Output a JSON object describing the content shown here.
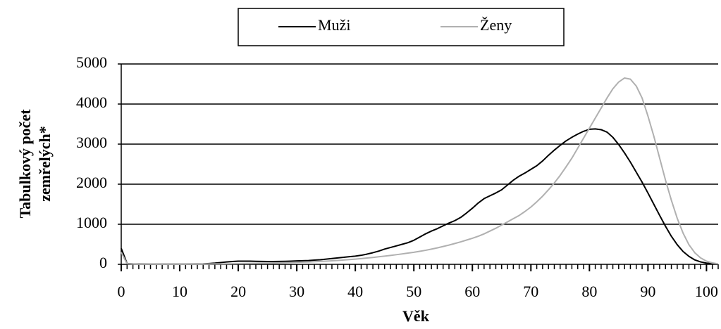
{
  "chart_data": {
    "type": "line",
    "xlabel": "Věk",
    "ylabel": [
      "Tabulkový počet",
      "zemřelých*"
    ],
    "x": [
      0,
      1,
      2,
      3,
      4,
      5,
      6,
      7,
      8,
      9,
      10,
      11,
      12,
      13,
      14,
      15,
      16,
      17,
      18,
      19,
      20,
      21,
      22,
      23,
      24,
      25,
      26,
      27,
      28,
      29,
      30,
      31,
      32,
      33,
      34,
      35,
      36,
      37,
      38,
      39,
      40,
      41,
      42,
      43,
      44,
      45,
      46,
      47,
      48,
      49,
      50,
      51,
      52,
      53,
      54,
      55,
      56,
      57,
      58,
      59,
      60,
      61,
      62,
      63,
      64,
      65,
      66,
      67,
      68,
      69,
      70,
      71,
      72,
      73,
      74,
      75,
      76,
      77,
      78,
      79,
      80,
      81,
      82,
      83,
      84,
      85,
      86,
      87,
      88,
      89,
      90,
      91,
      92,
      93,
      94,
      95,
      96,
      97,
      98,
      99,
      100,
      101,
      102
    ],
    "series": [
      {
        "name": "Muži",
        "color": "#000000",
        "values": [
          400,
          20,
          10,
          8,
          6,
          5,
          5,
          5,
          5,
          5,
          5,
          5,
          6,
          8,
          12,
          20,
          30,
          45,
          60,
          70,
          80,
          80,
          78,
          75,
          72,
          70,
          70,
          72,
          75,
          80,
          85,
          90,
          95,
          105,
          115,
          130,
          145,
          160,
          175,
          190,
          205,
          225,
          255,
          290,
          330,
          380,
          420,
          460,
          500,
          540,
          600,
          680,
          760,
          830,
          890,
          960,
          1030,
          1090,
          1170,
          1280,
          1400,
          1530,
          1640,
          1710,
          1780,
          1860,
          1980,
          2100,
          2200,
          2280,
          2370,
          2460,
          2580,
          2720,
          2850,
          2970,
          3080,
          3170,
          3250,
          3320,
          3370,
          3380,
          3360,
          3300,
          3170,
          2990,
          2780,
          2550,
          2300,
          2050,
          1780,
          1500,
          1220,
          950,
          700,
          490,
          320,
          200,
          110,
          60,
          30,
          15,
          5
        ]
      },
      {
        "name": "Ženy",
        "color": "#b0b0b0",
        "values": [
          300,
          15,
          8,
          5,
          4,
          4,
          3,
          3,
          3,
          3,
          3,
          3,
          4,
          5,
          6,
          8,
          10,
          12,
          14,
          16,
          18,
          20,
          22,
          25,
          28,
          30,
          34,
          38,
          42,
          46,
          50,
          55,
          60,
          66,
          72,
          80,
          88,
          97,
          107,
          118,
          130,
          143,
          157,
          172,
          188,
          205,
          222,
          240,
          260,
          280,
          300,
          325,
          350,
          380,
          410,
          445,
          480,
          520,
          560,
          605,
          650,
          700,
          760,
          830,
          900,
          980,
          1060,
          1140,
          1220,
          1320,
          1430,
          1560,
          1700,
          1860,
          2030,
          2220,
          2430,
          2650,
          2900,
          3150,
          3400,
          3650,
          3900,
          4150,
          4380,
          4550,
          4650,
          4620,
          4450,
          4150,
          3700,
          3200,
          2650,
          2100,
          1600,
          1150,
          780,
          490,
          290,
          160,
          80,
          35,
          12
        ]
      }
    ],
    "xlim": [
      0,
      102
    ],
    "xticks": [
      0,
      10,
      20,
      30,
      40,
      50,
      60,
      70,
      80,
      90,
      100
    ],
    "ylim": [
      0,
      5000
    ],
    "yticks": [
      0,
      1000,
      2000,
      3000,
      4000,
      5000
    ],
    "grid": true,
    "legend": "top"
  }
}
